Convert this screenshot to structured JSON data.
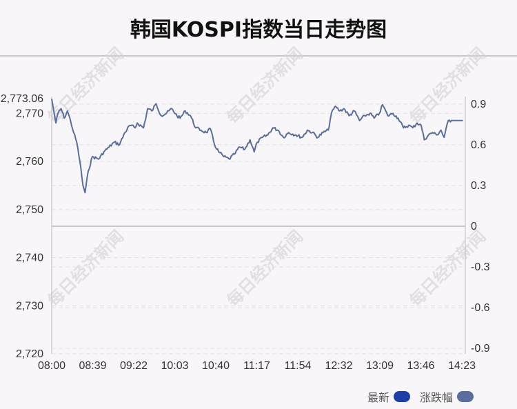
{
  "title": "韩国KOSPI指数当日走势图",
  "watermark": "每日经济新闻",
  "colors": {
    "line": "#5a6d9c",
    "latest": "#1f3fa8",
    "change": "#5a6d9c",
    "grid": "#e2e0e2",
    "zero": "#c8c6c8"
  },
  "legend": [
    {
      "label": "最新",
      "color": "#1f3fa8"
    },
    {
      "label": "涨跌幅",
      "color": "#5a6d9c"
    }
  ],
  "chart_data": {
    "type": "line",
    "title": "韩国KOSPI指数当日走势图",
    "y_left_ticks": [
      "2,773.06",
      "2,770",
      "2,760",
      "2,750",
      "2,740",
      "2,730",
      "2,720"
    ],
    "y_left_range": [
      2720,
      2773.06
    ],
    "y_right_ticks": [
      "0.9",
      "0.6",
      "0.3",
      "0",
      "-0.3",
      "-0.6",
      "-0.9"
    ],
    "y_right_range": [
      -0.94,
      0.94
    ],
    "x_ticks": [
      "08:00",
      "08:39",
      "09:22",
      "10:03",
      "10:40",
      "11:17",
      "11:54",
      "12:32",
      "13:09",
      "13:46",
      "14:23"
    ],
    "series": [
      {
        "points": [
          [
            "08:00",
            2773.0
          ],
          [
            "08:02",
            2770.5
          ],
          [
            "08:04",
            2768.0
          ],
          [
            "08:06",
            2770.0
          ],
          [
            "08:09",
            2771.0
          ],
          [
            "08:12",
            2769.0
          ],
          [
            "08:15",
            2770.5
          ],
          [
            "08:18",
            2768.5
          ],
          [
            "08:21",
            2766.0
          ],
          [
            "08:24",
            2764.0
          ],
          [
            "08:27",
            2760.0
          ],
          [
            "08:30",
            2755.0
          ],
          [
            "08:32",
            2753.5
          ],
          [
            "08:35",
            2758.0
          ],
          [
            "08:39",
            2761.0
          ],
          [
            "08:45",
            2760.5
          ],
          [
            "08:50",
            2762.0
          ],
          [
            "08:55",
            2763.0
          ],
          [
            "09:00",
            2764.0
          ],
          [
            "09:05",
            2763.5
          ],
          [
            "09:10",
            2766.0
          ],
          [
            "09:15",
            2767.5
          ],
          [
            "09:20",
            2767.0
          ],
          [
            "09:22",
            2768.0
          ],
          [
            "09:28",
            2767.0
          ],
          [
            "09:32",
            2771.0
          ],
          [
            "09:36",
            2770.5
          ],
          [
            "09:40",
            2772.0
          ],
          [
            "09:45",
            2769.5
          ],
          [
            "09:50",
            2770.0
          ],
          [
            "09:55",
            2771.0
          ],
          [
            "10:00",
            2769.5
          ],
          [
            "10:03",
            2769.0
          ],
          [
            "10:08",
            2770.5
          ],
          [
            "10:13",
            2769.5
          ],
          [
            "10:18",
            2767.0
          ],
          [
            "10:23",
            2766.5
          ],
          [
            "10:28",
            2766.0
          ],
          [
            "10:32",
            2766.8
          ],
          [
            "10:36",
            2763.5
          ],
          [
            "10:40",
            2762.0
          ],
          [
            "10:45",
            2761.0
          ],
          [
            "10:50",
            2760.5
          ],
          [
            "10:55",
            2761.5
          ],
          [
            "11:00",
            2763.0
          ],
          [
            "11:05",
            2762.5
          ],
          [
            "11:10",
            2764.5
          ],
          [
            "11:14",
            2762.0
          ],
          [
            "11:17",
            2764.0
          ],
          [
            "11:22",
            2765.0
          ],
          [
            "11:27",
            2765.5
          ],
          [
            "11:32",
            2767.0
          ],
          [
            "11:37",
            2766.5
          ],
          [
            "11:42",
            2765.0
          ],
          [
            "11:47",
            2766.0
          ],
          [
            "11:54",
            2765.5
          ],
          [
            "12:00",
            2765.0
          ],
          [
            "12:05",
            2766.5
          ],
          [
            "12:10",
            2766.0
          ],
          [
            "12:15",
            2765.0
          ],
          [
            "12:20",
            2766.0
          ],
          [
            "12:25",
            2766.5
          ],
          [
            "12:28",
            2770.0
          ],
          [
            "12:32",
            2771.5
          ],
          [
            "12:36",
            2770.5
          ],
          [
            "12:40",
            2771.0
          ],
          [
            "12:45",
            2769.5
          ],
          [
            "12:50",
            2770.5
          ],
          [
            "12:55",
            2768.5
          ],
          [
            "13:00",
            2769.5
          ],
          [
            "13:05",
            2770.0
          ],
          [
            "13:09",
            2769.0
          ],
          [
            "13:14",
            2770.0
          ],
          [
            "13:17",
            2771.8
          ],
          [
            "13:22",
            2769.5
          ],
          [
            "13:27",
            2770.0
          ],
          [
            "13:32",
            2769.0
          ],
          [
            "13:37",
            2767.0
          ],
          [
            "13:42",
            2767.5
          ],
          [
            "13:46",
            2767.0
          ],
          [
            "13:50",
            2768.0
          ],
          [
            "13:54",
            2767.5
          ],
          [
            "13:57",
            2764.5
          ],
          [
            "14:01",
            2765.5
          ],
          [
            "14:05",
            2766.0
          ],
          [
            "14:09",
            2765.5
          ],
          [
            "14:13",
            2766.5
          ],
          [
            "14:16",
            2765.0
          ],
          [
            "14:20",
            2768.5
          ],
          [
            "14:23",
            2768.5
          ],
          [
            "14:30",
            2768.5
          ],
          [
            "14:34",
            2768.5
          ]
        ]
      }
    ]
  }
}
